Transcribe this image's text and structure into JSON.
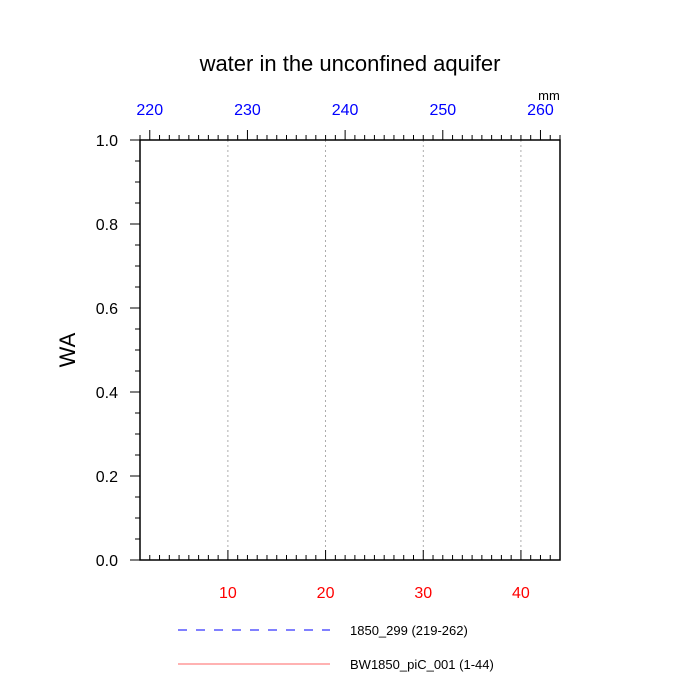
{
  "chart_data": {
    "type": "line",
    "title": "water in the unconfined aquifer",
    "ylabel": "WA",
    "top_axis_units": "mm",
    "ylim": [
      0,
      1
    ],
    "y_ticks": [
      {
        "value": 0.0,
        "label": "0.0"
      },
      {
        "value": 0.2,
        "label": "0.2"
      },
      {
        "value": 0.4,
        "label": "0.4"
      },
      {
        "value": 0.6,
        "label": "0.6"
      },
      {
        "value": 0.8,
        "label": "0.8"
      },
      {
        "value": 1.0,
        "label": "1.0"
      }
    ],
    "bottom_axis": {
      "range": [
        1,
        44
      ],
      "color": "#ff0000",
      "ticks": [
        {
          "value": 10,
          "label": "10"
        },
        {
          "value": 20,
          "label": "20"
        },
        {
          "value": 30,
          "label": "30"
        },
        {
          "value": 40,
          "label": "40"
        }
      ]
    },
    "top_axis": {
      "range": [
        219,
        262
      ],
      "color": "#0000ff",
      "ticks": [
        {
          "value": 220,
          "label": "220"
        },
        {
          "value": 230,
          "label": "230"
        },
        {
          "value": 240,
          "label": "240"
        },
        {
          "value": 250,
          "label": "250"
        },
        {
          "value": 260,
          "label": "260"
        }
      ]
    },
    "grid": "vertical dashed",
    "legend_position": "bottom",
    "series": [
      {
        "name": "1850_299 (219-262)",
        "color": "#0000ff",
        "style": "dashed",
        "values": []
      },
      {
        "name": "BW1850_piC_001 (1-44)",
        "color": "#ff0000",
        "style": "solid",
        "values": []
      }
    ]
  }
}
